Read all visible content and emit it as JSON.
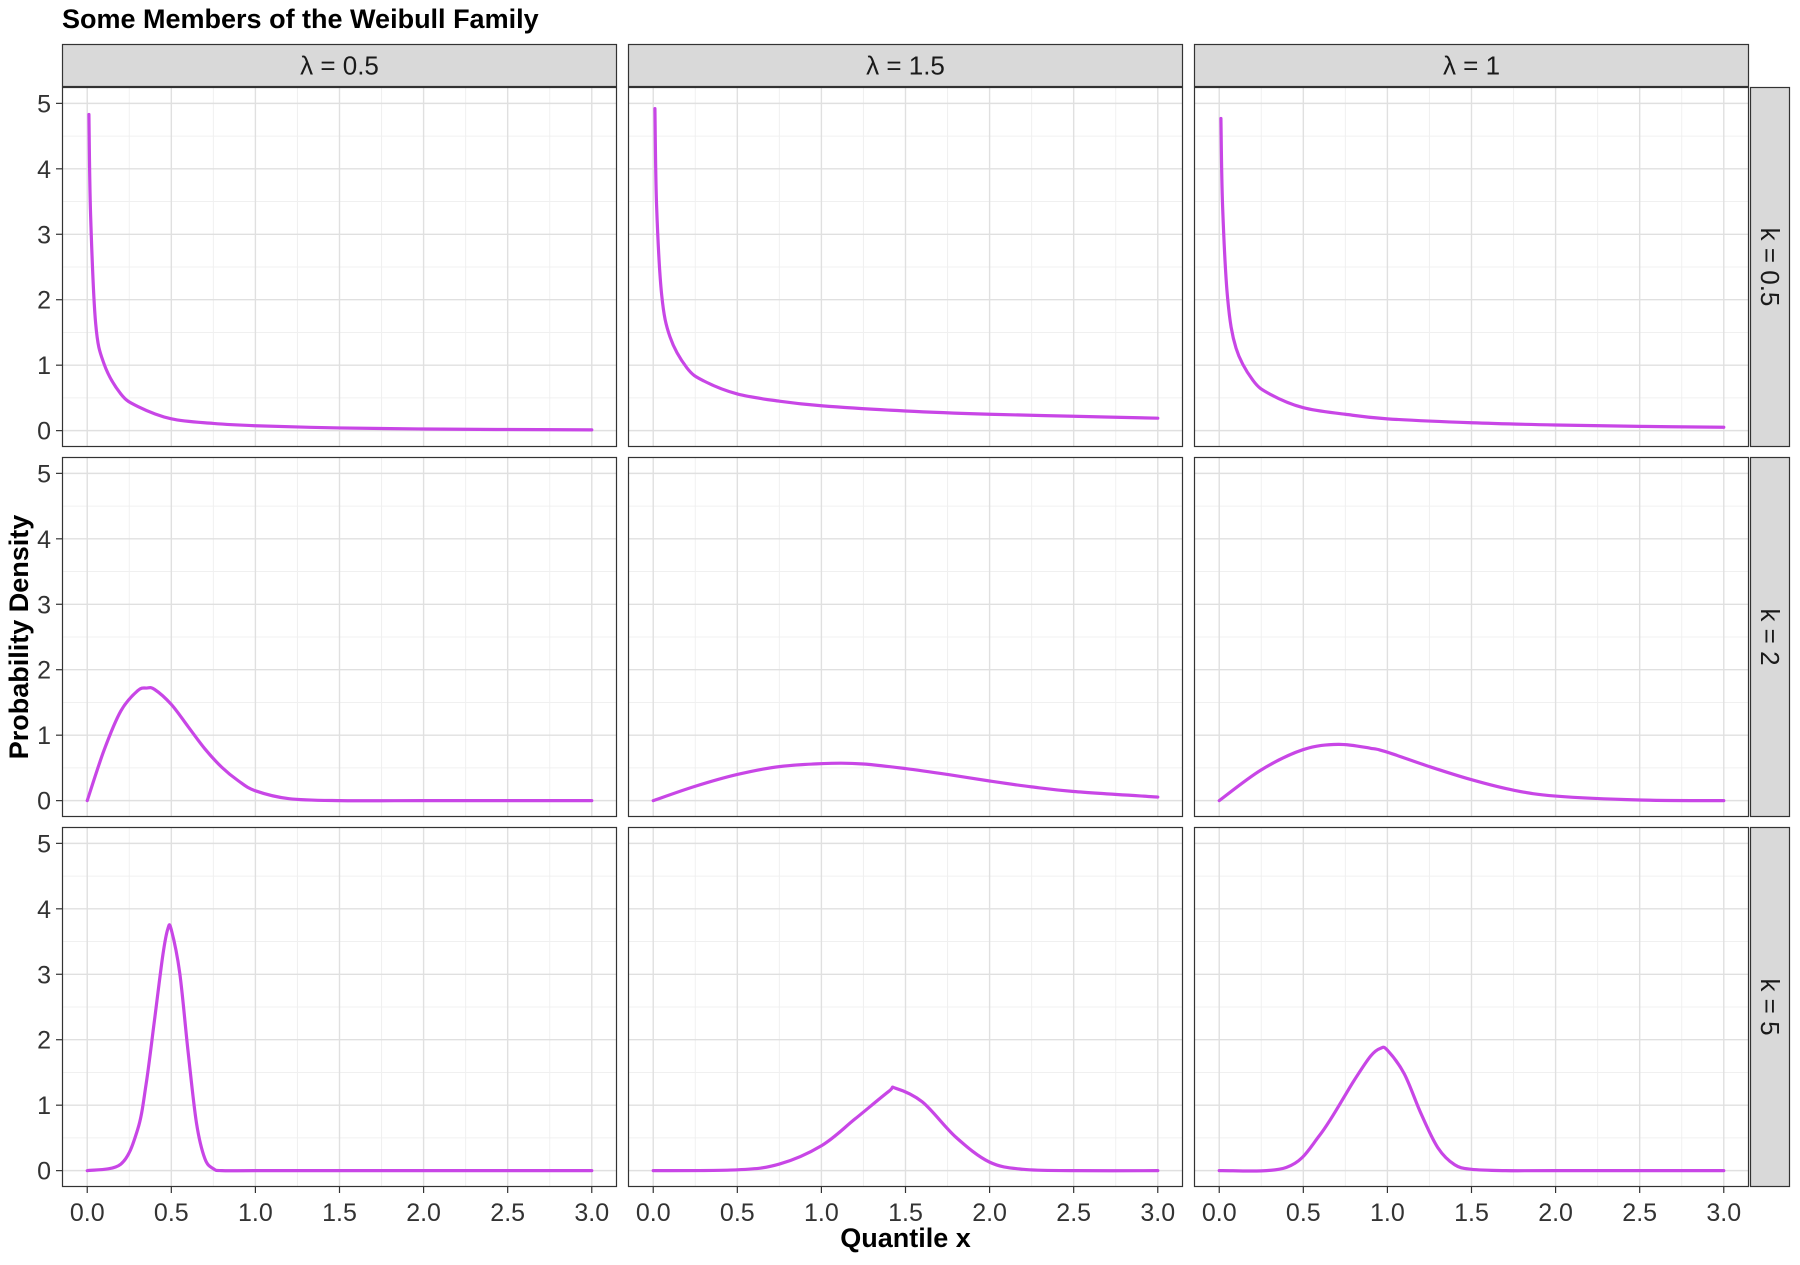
{
  "chart_data": {
    "type": "line",
    "title": "Some Members of the Weibull Family",
    "xlabel": "Quantile x",
    "ylabel": "Probability Density",
    "xlim": [
      -0.15,
      3.15
    ],
    "ylim": [
      -0.25,
      5.25
    ],
    "x_ticks": [
      0.0,
      0.5,
      1.0,
      1.5,
      2.0,
      2.5,
      3.0
    ],
    "x_tick_labels": [
      "0.0",
      "0.5",
      "1.0",
      "1.5",
      "2.0",
      "2.5",
      "3.0"
    ],
    "y_ticks": [
      0,
      1,
      2,
      3,
      4,
      5
    ],
    "y_tick_labels": [
      "0",
      "1",
      "2",
      "3",
      "4",
      "5"
    ],
    "grid": true,
    "line_color": "#C846E6",
    "facet_columns": [
      "λ = 0.5",
      "λ = 1.5",
      "λ = 1"
    ],
    "facet_rows": [
      "k = 0.5",
      "k = 2",
      "k = 5"
    ],
    "panels": [
      {
        "col": 0,
        "row": 0,
        "x": [
          0.01,
          0.02,
          0.05,
          0.1,
          0.2,
          0.3,
          0.5,
          0.75,
          1.0,
          1.5,
          2.0,
          2.5,
          3.0
        ],
        "y": [
          4.83,
          3.3,
          1.64,
          1.02,
          0.56,
          0.37,
          0.18,
          0.11,
          0.075,
          0.041,
          0.025,
          0.017,
          0.012
        ]
      },
      {
        "col": 1,
        "row": 0,
        "x": [
          0.01,
          0.02,
          0.05,
          0.1,
          0.2,
          0.3,
          0.5,
          0.75,
          1.0,
          1.5,
          2.0,
          2.5,
          3.0
        ],
        "y": [
          4.92,
          3.44,
          2.08,
          1.43,
          0.96,
          0.76,
          0.56,
          0.45,
          0.38,
          0.3,
          0.25,
          0.22,
          0.19
        ]
      },
      {
        "col": 2,
        "row": 0,
        "x": [
          0.01,
          0.02,
          0.05,
          0.1,
          0.2,
          0.3,
          0.5,
          0.75,
          1.0,
          1.5,
          2.0,
          2.5,
          3.0
        ],
        "y": [
          4.77,
          3.43,
          2.02,
          1.26,
          0.77,
          0.56,
          0.35,
          0.25,
          0.18,
          0.12,
          0.086,
          0.065,
          0.052
        ]
      },
      {
        "col": 0,
        "row": 1,
        "x": [
          0,
          0.1,
          0.2,
          0.3,
          0.354,
          0.4,
          0.5,
          0.6,
          0.7,
          0.8,
          0.9,
          1.0,
          1.2,
          1.5,
          2.0,
          2.5,
          3.0
        ],
        "y": [
          0,
          0.77,
          1.37,
          1.68,
          1.72,
          1.7,
          1.47,
          1.13,
          0.79,
          0.51,
          0.3,
          0.15,
          0.03,
          0,
          0,
          0,
          0
        ]
      },
      {
        "col": 1,
        "row": 1,
        "x": [
          0,
          0.25,
          0.5,
          0.75,
          1.06,
          1.25,
          1.5,
          1.75,
          2.0,
          2.25,
          2.5,
          3.0
        ],
        "y": [
          0,
          0.22,
          0.4,
          0.52,
          0.57,
          0.56,
          0.49,
          0.4,
          0.3,
          0.21,
          0.14,
          0.055
        ]
      },
      {
        "col": 2,
        "row": 1,
        "x": [
          0,
          0.25,
          0.5,
          0.707,
          0.9,
          1.0,
          1.25,
          1.5,
          1.75,
          2.0,
          2.5,
          3.0
        ],
        "y": [
          0,
          0.47,
          0.78,
          0.86,
          0.8,
          0.74,
          0.52,
          0.32,
          0.16,
          0.07,
          0.01,
          0
        ]
      },
      {
        "col": 0,
        "row": 2,
        "x": [
          0,
          0.2,
          0.3,
          0.35,
          0.4,
          0.45,
          0.48,
          0.5,
          0.55,
          0.6,
          0.65,
          0.7,
          0.75,
          0.8,
          1.0,
          1.5,
          2.0,
          2.5,
          3.0
        ],
        "y": [
          0,
          0.1,
          0.63,
          1.32,
          2.3,
          3.3,
          3.7,
          3.68,
          3.02,
          1.81,
          0.72,
          0.18,
          0.03,
          0,
          0,
          0,
          0,
          0,
          0
        ]
      },
      {
        "col": 1,
        "row": 2,
        "x": [
          0,
          0.5,
          0.75,
          1.0,
          1.2,
          1.4,
          1.44,
          1.6,
          1.8,
          2.0,
          2.2,
          2.5,
          3.0
        ],
        "y": [
          0,
          0.013,
          0.1,
          0.38,
          0.79,
          1.21,
          1.26,
          1.05,
          0.51,
          0.13,
          0.02,
          0,
          0
        ],
        "_": "interior"
      },
      {
        "col": 2,
        "row": 2,
        "x": [
          0,
          0.4,
          0.6,
          0.8,
          0.9,
          0.96,
          1.0,
          1.1,
          1.2,
          1.3,
          1.4,
          1.5,
          1.7,
          2.0,
          3.0
        ],
        "y": [
          0,
          0.05,
          0.55,
          1.37,
          1.75,
          1.87,
          1.84,
          1.48,
          0.87,
          0.35,
          0.09,
          0.02,
          0,
          0,
          0
        ]
      }
    ]
  }
}
